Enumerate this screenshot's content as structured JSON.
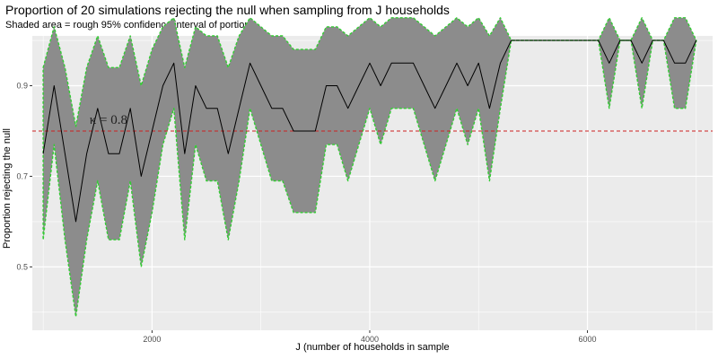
{
  "chart_data": {
    "type": "line",
    "title": "Proportion of 20 simulations rejecting the null when sampling from J households",
    "subtitle": "Shaded area = rough 95% confidence interval of portions",
    "xlabel": "J (number of households in sample",
    "ylabel": "Proportion rejecting the null",
    "xlim": [
      900,
      7150
    ],
    "ylim": [
      0.36,
      1.01
    ],
    "x_ticks": [
      2000,
      4000,
      6000
    ],
    "x_tick_labels": [
      "2000",
      "4000",
      "6000"
    ],
    "y_ticks": [
      0.5,
      0.7,
      0.9
    ],
    "y_tick_labels": [
      "0.5",
      "0.7",
      "0.9"
    ],
    "grid": true,
    "reference_line": {
      "y": 0.8,
      "style": "dashed",
      "color": "#cc2222"
    },
    "annotation": {
      "text": "κ = 0.8",
      "x": 1600,
      "y": 0.8
    },
    "colors": {
      "panel": "#ebebeb",
      "grid": "#ffffff",
      "ribbon": "#8c8c8c",
      "ribbon_edge": "#33cc33",
      "line": "#000000"
    },
    "series": [
      {
        "x": [
          1000,
          1100,
          1200,
          1300,
          1400,
          1500,
          1600,
          1700,
          1800,
          1900,
          2000,
          2100,
          2200,
          2300,
          2400,
          2500,
          2600,
          2700,
          2800,
          2900,
          3000,
          3100,
          3200,
          3300,
          3400,
          3500,
          3600,
          3700,
          3800,
          3900,
          4000,
          4100,
          4200,
          4300,
          4400,
          4500,
          4600,
          4700,
          4800,
          4900,
          5000,
          5100,
          5200,
          5300,
          5400,
          5500,
          5600,
          5700,
          5800,
          5900,
          6000,
          6100,
          6200,
          6300,
          6400,
          6500,
          6600,
          6700,
          6800,
          6900,
          7000
        ],
        "y": [
          0.75,
          0.9,
          0.75,
          0.6,
          0.75,
          0.85,
          0.75,
          0.75,
          0.85,
          0.7,
          0.8,
          0.9,
          0.95,
          0.75,
          0.9,
          0.85,
          0.85,
          0.75,
          0.85,
          0.95,
          0.9,
          0.85,
          0.85,
          0.8,
          0.8,
          0.8,
          0.9,
          0.9,
          0.85,
          0.9,
          0.95,
          0.9,
          0.95,
          0.95,
          0.95,
          0.9,
          0.85,
          0.9,
          0.95,
          0.9,
          0.95,
          0.85,
          0.95,
          1.0,
          1.0,
          1.0,
          1.0,
          1.0,
          1.0,
          1.0,
          1.0,
          1.0,
          0.95,
          1.0,
          1.0,
          0.95,
          1.0,
          1.0,
          0.95,
          0.95,
          1.0
        ],
        "ci_lower": [
          0.56,
          0.77,
          0.56,
          0.39,
          0.56,
          0.69,
          0.56,
          0.56,
          0.69,
          0.5,
          0.62,
          0.77,
          0.85,
          0.56,
          0.77,
          0.69,
          0.69,
          0.56,
          0.69,
          0.85,
          0.77,
          0.69,
          0.69,
          0.62,
          0.62,
          0.62,
          0.77,
          0.77,
          0.69,
          0.77,
          0.85,
          0.77,
          0.85,
          0.85,
          0.85,
          0.77,
          0.69,
          0.77,
          0.85,
          0.77,
          0.85,
          0.69,
          0.85,
          1.0,
          1.0,
          1.0,
          1.0,
          1.0,
          1.0,
          1.0,
          1.0,
          1.0,
          0.85,
          1.0,
          1.0,
          0.85,
          1.0,
          1.0,
          0.85,
          0.85,
          1.0
        ],
        "ci_upper": [
          0.94,
          1.03,
          0.94,
          0.81,
          0.94,
          1.01,
          0.94,
          0.94,
          1.01,
          0.9,
          0.98,
          1.03,
          1.05,
          0.94,
          1.03,
          1.01,
          1.01,
          0.94,
          1.01,
          1.05,
          1.03,
          1.01,
          1.01,
          0.98,
          0.98,
          0.98,
          1.03,
          1.03,
          1.01,
          1.03,
          1.05,
          1.03,
          1.05,
          1.05,
          1.05,
          1.03,
          1.01,
          1.03,
          1.05,
          1.03,
          1.05,
          1.01,
          1.05,
          1.0,
          1.0,
          1.0,
          1.0,
          1.0,
          1.0,
          1.0,
          1.0,
          1.0,
          1.05,
          1.0,
          1.0,
          1.05,
          1.0,
          1.0,
          1.05,
          1.05,
          1.0
        ]
      }
    ]
  }
}
